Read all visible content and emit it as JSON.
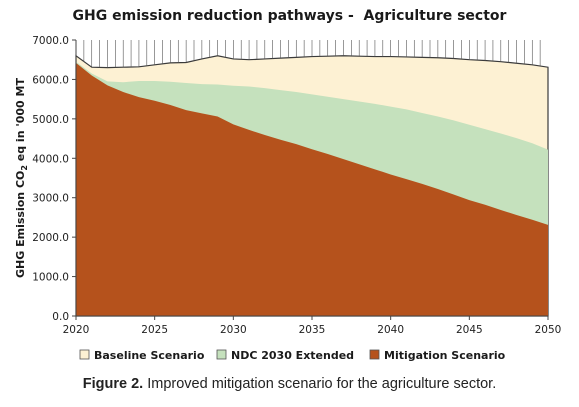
{
  "figure": {
    "caption_label": "Figure 2.",
    "caption_text": " Improved mitigation scenario for the agriculture sector."
  },
  "chart_data": {
    "type": "area",
    "title": "GHG emission reduction pathways -  Agriculture sector",
    "xlabel": "",
    "ylabel_parts": [
      "GHG Emission CO",
      "2",
      " eq in '000 MT"
    ],
    "xlim": [
      2020,
      2050
    ],
    "ylim": [
      0,
      7000
    ],
    "xticks": [
      "2020",
      "2025",
      "2030",
      "2035",
      "2040",
      "2045",
      "2050"
    ],
    "yticks": [
      "0.0",
      "1000.0",
      "2000.0",
      "3000.0",
      "4000.0",
      "5000.0",
      "6000.0",
      "7000.0"
    ],
    "legend_position": "bottom",
    "x": [
      2020,
      2021,
      2022,
      2023,
      2024,
      2025,
      2026,
      2027,
      2028,
      2029,
      2030,
      2031,
      2032,
      2033,
      2034,
      2035,
      2036,
      2037,
      2038,
      2039,
      2040,
      2041,
      2042,
      2043,
      2044,
      2045,
      2046,
      2047,
      2048,
      2049,
      2050
    ],
    "series": [
      {
        "name": "Baseline Scenario",
        "color": "#fdf1d3",
        "values": [
          6600,
          6310,
          6300,
          6310,
          6320,
          6370,
          6420,
          6430,
          6520,
          6600,
          6520,
          6500,
          6520,
          6540,
          6560,
          6580,
          6590,
          6600,
          6590,
          6580,
          6580,
          6570,
          6560,
          6550,
          6530,
          6500,
          6480,
          6450,
          6410,
          6370,
          6310
        ]
      },
      {
        "name": "NDC 2030 Extended",
        "color": "#c5e1bd",
        "values": [
          6450,
          6150,
          5950,
          5930,
          5960,
          5960,
          5940,
          5910,
          5880,
          5870,
          5840,
          5820,
          5780,
          5730,
          5680,
          5620,
          5560,
          5500,
          5440,
          5380,
          5310,
          5240,
          5150,
          5060,
          4960,
          4850,
          4740,
          4630,
          4510,
          4380,
          4220
        ]
      },
      {
        "name": "Mitigation Scenario",
        "color": "#b5521c",
        "values": [
          6420,
          6100,
          5850,
          5680,
          5550,
          5460,
          5350,
          5220,
          5140,
          5060,
          4860,
          4720,
          4590,
          4470,
          4360,
          4230,
          4110,
          3980,
          3850,
          3720,
          3590,
          3470,
          3350,
          3220,
          3080,
          2940,
          2820,
          2690,
          2560,
          2440,
          2310
        ]
      }
    ]
  }
}
